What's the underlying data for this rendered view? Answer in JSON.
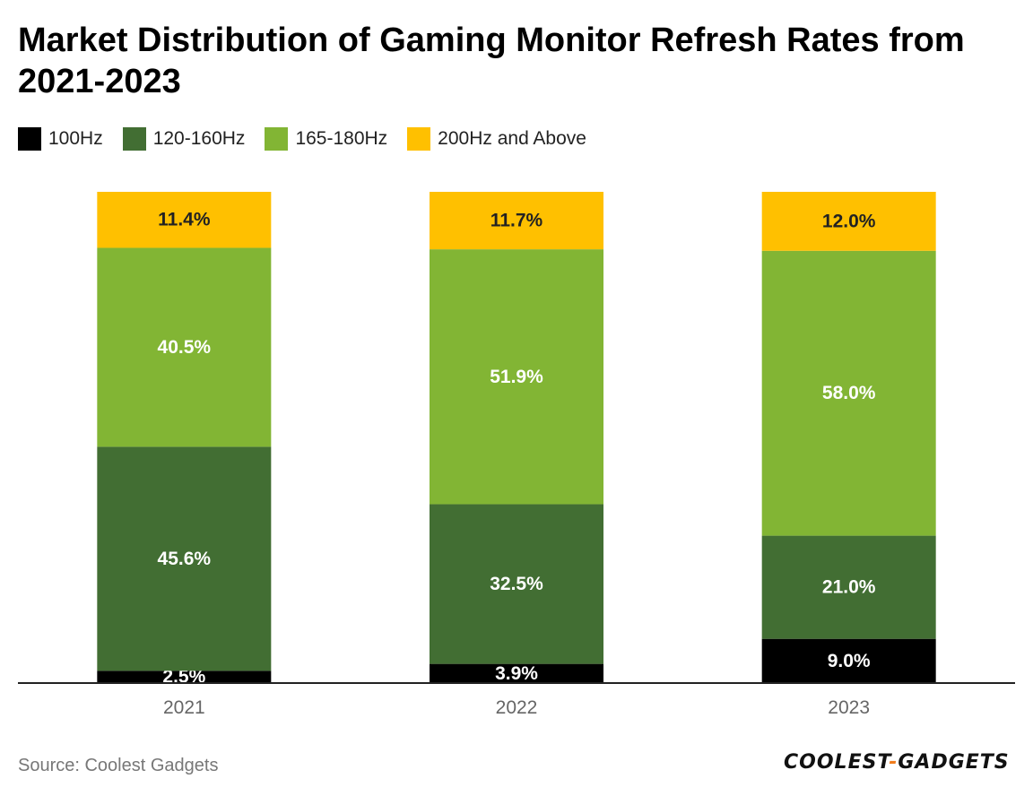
{
  "title": "Market Distribution of Gaming Monitor Refresh Rates from 2021-2023",
  "source": "Source: Coolest Gadgets",
  "logo": {
    "part1": "COOLEST",
    "dash": "-",
    "part2": "GADGETS"
  },
  "colors": {
    "100Hz": "#000000",
    "120-160Hz": "#426e33",
    "165-180Hz": "#82b534",
    "200Hz and Above": "#ffc000",
    "axis": "#222222",
    "tick_label": "#666666"
  },
  "chart_data": {
    "type": "bar",
    "stacked": true,
    "title": "Market Distribution of Gaming Monitor Refresh Rates from 2021-2023",
    "categories": [
      "2021",
      "2022",
      "2023"
    ],
    "series": [
      {
        "name": "100Hz",
        "values": [
          2.5,
          3.9,
          9.0
        ],
        "labels": [
          "2.5%",
          "3.9%",
          "9.0%"
        ]
      },
      {
        "name": "120-160Hz",
        "values": [
          45.6,
          32.5,
          21.0
        ],
        "labels": [
          "45.6%",
          "32.5%",
          "21.0%"
        ]
      },
      {
        "name": "165-180Hz",
        "values": [
          40.5,
          51.9,
          58.0
        ],
        "labels": [
          "40.5%",
          "51.9%",
          "58.0%"
        ]
      },
      {
        "name": "200Hz and Above",
        "values": [
          11.4,
          11.7,
          12.0
        ],
        "labels": [
          "11.4%",
          "11.7%",
          "12.0%"
        ]
      }
    ],
    "xlabel": "",
    "ylabel": "",
    "ylim": [
      0,
      100
    ],
    "grid": false,
    "legend_position": "top-left"
  }
}
